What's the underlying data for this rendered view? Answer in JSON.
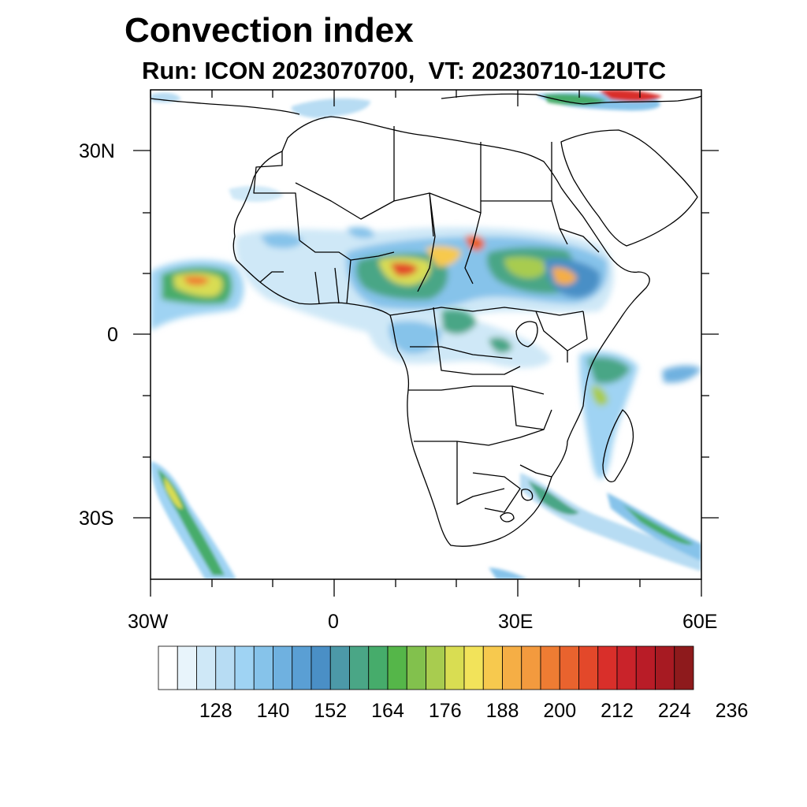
{
  "title": "Convection index",
  "subtitle": "Run: ICON 2023070700,  VT: 20230710-12UTC",
  "map": {
    "lon_range": [
      -30,
      60
    ],
    "lat_range": [
      -40,
      40
    ],
    "x_ticks": [
      "30W",
      "0",
      "30E",
      "60E"
    ],
    "y_ticks": [
      "30N",
      "0",
      "30S"
    ]
  },
  "colorbar": {
    "labels": [
      "128",
      "140",
      "152",
      "164",
      "176",
      "188",
      "200",
      "212",
      "224",
      "236"
    ],
    "colors": [
      "#ffffff",
      "#e8f4fb",
      "#cfe8f7",
      "#b7dcf3",
      "#9fd3f3",
      "#86c3ea",
      "#6fb1e0",
      "#5a9fd4",
      "#4a8fc6",
      "#4c99a8",
      "#4aa686",
      "#46ac6b",
      "#55b649",
      "#82c14d",
      "#a8cc4f",
      "#d9dd52",
      "#f2e35a",
      "#f7c94e",
      "#f5ae45",
      "#f39a3e",
      "#ee7c33",
      "#e9632e",
      "#e3482a",
      "#d92f2a",
      "#c9232a",
      "#b91c27",
      "#a71a22",
      "#8e1a1c"
    ]
  }
}
